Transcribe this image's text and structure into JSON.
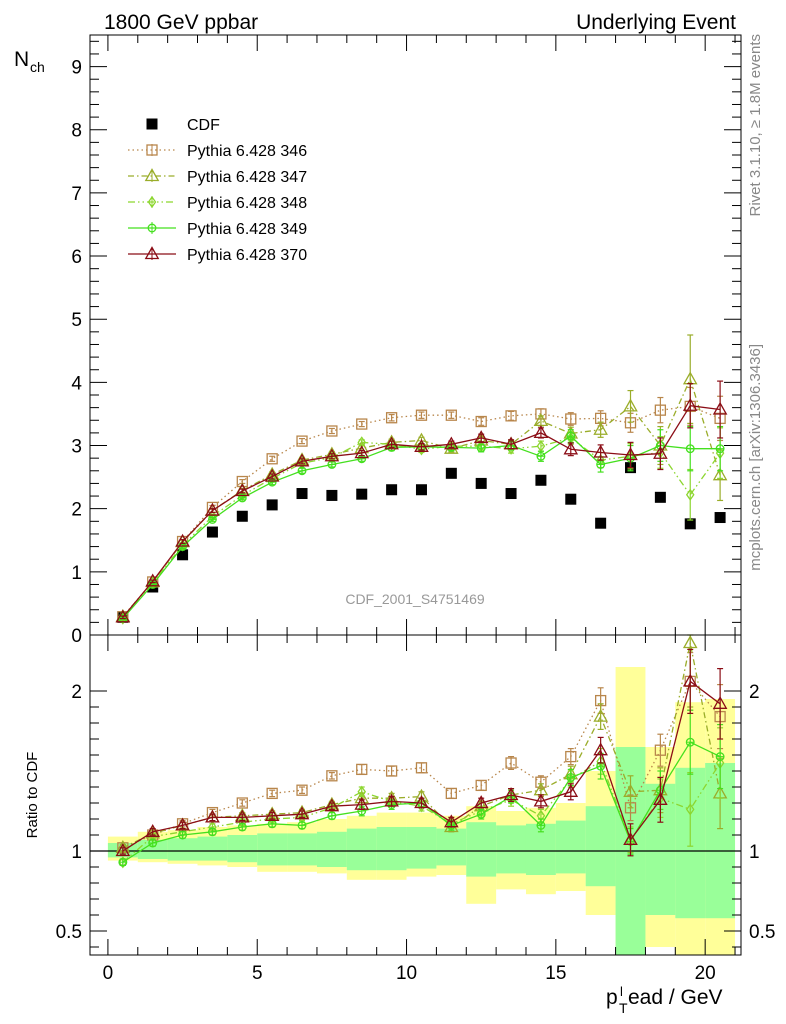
{
  "header": {
    "left": "1800 GeV ppbar",
    "right": "Underlying Event"
  },
  "side_labels": {
    "rivet": "Rivet 3.1.10, ≥ 1.8M events",
    "mcplots": "mcplots.cern.ch [arXiv:1306.3436]"
  },
  "colors": {
    "CDF": "#000000",
    "p346": "#b8864b",
    "p347": "#9aad2a",
    "p348": "#8cd62f",
    "p349": "#44e01e",
    "p370": "#8b0d16",
    "band_yellow": "#ffff99",
    "band_green": "#99ff99"
  },
  "chart_data": [
    {
      "type": "scatter",
      "title": "",
      "watermark": "CDF_2001_S4751469",
      "ylabel": "N",
      "ylabel_sub": "ch",
      "xlim": [
        -0.6,
        21.2
      ],
      "ylim": [
        0,
        9.5
      ],
      "y_ticks": [
        0,
        1,
        2,
        3,
        4,
        5,
        6,
        7,
        8,
        9
      ],
      "y_tick_labels": [
        "0",
        "1",
        "2",
        "3",
        "4",
        "5",
        "6",
        "7",
        "8",
        "9"
      ],
      "x": [
        0.5,
        1.5,
        2.5,
        3.5,
        4.5,
        5.5,
        6.5,
        7.5,
        8.5,
        9.5,
        10.5,
        11.5,
        12.5,
        13.5,
        14.5,
        15.5,
        16.5,
        17.5,
        18.5,
        19.5,
        20.5
      ],
      "legend": [
        "CDF",
        "Pythia 6.428 346",
        "Pythia 6.428 347",
        "Pythia 6.428 348",
        "Pythia 6.428 349",
        "Pythia 6.428 370"
      ],
      "series": [
        {
          "name": "CDF",
          "values": [
            0.28,
            0.76,
            1.27,
            1.63,
            1.88,
            2.06,
            2.24,
            2.21,
            2.23,
            2.3,
            2.3,
            2.56,
            2.4,
            2.24,
            2.45,
            2.15,
            1.77,
            2.65,
            2.18,
            1.76,
            1.86
          ]
        },
        {
          "name": "Pythia 6.428 346",
          "values": [
            0.29,
            0.84,
            1.48,
            2.02,
            2.43,
            2.79,
            3.07,
            3.23,
            3.34,
            3.44,
            3.48,
            3.48,
            3.38,
            3.47,
            3.5,
            3.42,
            3.43,
            3.36,
            3.56,
            3.62,
            3.43
          ],
          "err": [
            0.02,
            0.02,
            0.03,
            0.03,
            0.03,
            0.04,
            0.04,
            0.04,
            0.04,
            0.05,
            0.05,
            0.05,
            0.06,
            0.07,
            0.08,
            0.1,
            0.12,
            0.15,
            0.2,
            0.3,
            0.35
          ]
        },
        {
          "name": "Pythia 6.428 347",
          "values": [
            0.29,
            0.84,
            1.47,
            1.97,
            2.29,
            2.54,
            2.77,
            2.86,
            2.96,
            3.05,
            3.08,
            2.95,
            3.08,
            3.02,
            3.39,
            3.19,
            3.25,
            3.62,
            3.0,
            4.05,
            2.53
          ],
          "err": [
            0.02,
            0.02,
            0.03,
            0.03,
            0.03,
            0.04,
            0.04,
            0.04,
            0.04,
            0.05,
            0.05,
            0.05,
            0.06,
            0.07,
            0.08,
            0.1,
            0.12,
            0.25,
            0.3,
            0.7,
            0.4
          ]
        },
        {
          "name": "Pythia 6.428 348",
          "values": [
            0.26,
            0.83,
            1.42,
            1.88,
            2.21,
            2.48,
            2.72,
            2.81,
            3.05,
            3.02,
            2.94,
            2.99,
            2.99,
            2.95,
            2.99,
            3.12,
            2.77,
            2.83,
            2.89,
            2.22,
            2.88
          ],
          "err": [
            0.02,
            0.02,
            0.03,
            0.03,
            0.03,
            0.04,
            0.04,
            0.04,
            0.04,
            0.05,
            0.05,
            0.05,
            0.06,
            0.07,
            0.08,
            0.1,
            0.12,
            0.2,
            0.25,
            0.4,
            0.4
          ]
        },
        {
          "name": "Pythia 6.428 349",
          "values": [
            0.26,
            0.8,
            1.4,
            1.83,
            2.17,
            2.42,
            2.6,
            2.7,
            2.79,
            2.97,
            2.98,
            2.97,
            2.96,
            3.0,
            2.83,
            3.15,
            2.7,
            2.8,
            3.0,
            2.95,
            2.95
          ],
          "err": [
            0.02,
            0.02,
            0.03,
            0.03,
            0.03,
            0.04,
            0.04,
            0.04,
            0.04,
            0.05,
            0.05,
            0.05,
            0.06,
            0.07,
            0.08,
            0.1,
            0.12,
            0.2,
            0.25,
            0.35,
            0.35
          ]
        },
        {
          "name": "Pythia 6.428 370",
          "values": [
            0.28,
            0.85,
            1.48,
            1.97,
            2.28,
            2.51,
            2.75,
            2.83,
            2.88,
            3.02,
            2.98,
            3.02,
            3.12,
            3.02,
            3.2,
            2.94,
            2.89,
            2.85,
            2.87,
            3.63,
            3.57
          ],
          "err": [
            0.02,
            0.02,
            0.03,
            0.03,
            0.03,
            0.04,
            0.04,
            0.04,
            0.04,
            0.05,
            0.05,
            0.05,
            0.06,
            0.07,
            0.08,
            0.1,
            0.12,
            0.2,
            0.25,
            0.35,
            0.45
          ]
        }
      ]
    },
    {
      "type": "scatter",
      "title": "",
      "ylabel": "Ratio to CDF",
      "xlabel": "p",
      "xlabel_sub": "T",
      "xlabel_sup": "l",
      "xlabel_rest": "ead / GeV",
      "xlim": [
        -0.6,
        21.2
      ],
      "ylim": [
        0.35,
        2.35
      ],
      "y_ticks": [
        0.5,
        1,
        2
      ],
      "y_tick_labels": [
        "0.5",
        "1",
        "2"
      ],
      "x_ticks": [
        0,
        5,
        10,
        15,
        20
      ],
      "x_tick_labels": [
        "0",
        "5",
        "10",
        "15",
        "20"
      ],
      "x": [
        0.5,
        1.5,
        2.5,
        3.5,
        4.5,
        5.5,
        6.5,
        7.5,
        8.5,
        9.5,
        10.5,
        11.5,
        12.5,
        13.5,
        14.5,
        15.5,
        16.5,
        17.5,
        18.5,
        19.5,
        20.5
      ],
      "bands": {
        "yellow_lo": [
          0.94,
          0.93,
          0.92,
          0.91,
          0.9,
          0.87,
          0.87,
          0.86,
          0.82,
          0.82,
          0.84,
          0.85,
          0.67,
          0.76,
          0.73,
          0.75,
          0.6,
          0.35,
          0.4,
          0.35,
          0.35
        ],
        "yellow_hi": [
          1.09,
          1.12,
          1.13,
          1.15,
          1.16,
          1.17,
          1.18,
          1.2,
          1.22,
          1.24,
          1.24,
          1.22,
          1.28,
          1.25,
          1.27,
          1.3,
          1.5,
          2.15,
          1.65,
          1.93,
          1.95
        ],
        "green_lo": [
          0.96,
          0.95,
          0.94,
          0.94,
          0.93,
          0.91,
          0.91,
          0.9,
          0.88,
          0.88,
          0.89,
          0.91,
          0.84,
          0.86,
          0.85,
          0.86,
          0.78,
          0.35,
          0.6,
          0.58,
          0.58
        ],
        "green_hi": [
          1.05,
          1.07,
          1.08,
          1.09,
          1.1,
          1.11,
          1.11,
          1.12,
          1.14,
          1.15,
          1.15,
          1.14,
          1.18,
          1.16,
          1.17,
          1.19,
          1.28,
          1.65,
          1.42,
          1.52,
          1.55
        ]
      },
      "series": [
        {
          "name": "Pythia 6.428 346",
          "values": [
            1.02,
            1.1,
            1.17,
            1.24,
            1.3,
            1.36,
            1.38,
            1.47,
            1.51,
            1.5,
            1.52,
            1.36,
            1.41,
            1.55,
            1.43,
            1.59,
            1.94,
            1.27,
            1.63,
            2.06,
            1.84
          ],
          "err": [
            0.02,
            0.02,
            0.02,
            0.02,
            0.02,
            0.02,
            0.02,
            0.02,
            0.03,
            0.03,
            0.03,
            0.03,
            0.03,
            0.04,
            0.04,
            0.05,
            0.08,
            0.08,
            0.1,
            0.18,
            0.2
          ]
        },
        {
          "name": "Pythia 6.428 347",
          "values": [
            1.02,
            1.11,
            1.16,
            1.21,
            1.22,
            1.23,
            1.24,
            1.29,
            1.33,
            1.33,
            1.34,
            1.15,
            1.28,
            1.35,
            1.38,
            1.48,
            1.84,
            1.37,
            1.38,
            2.3,
            1.36
          ],
          "err": [
            0.02,
            0.02,
            0.02,
            0.02,
            0.02,
            0.02,
            0.02,
            0.02,
            0.03,
            0.03,
            0.03,
            0.03,
            0.03,
            0.04,
            0.04,
            0.05,
            0.08,
            0.1,
            0.14,
            0.4,
            0.22
          ]
        },
        {
          "name": "Pythia 6.428 348",
          "values": [
            0.93,
            1.09,
            1.12,
            1.15,
            1.18,
            1.2,
            1.21,
            1.27,
            1.37,
            1.31,
            1.28,
            1.17,
            1.25,
            1.32,
            1.22,
            1.45,
            1.56,
            1.07,
            1.33,
            1.26,
            1.55
          ],
          "err": [
            0.02,
            0.02,
            0.02,
            0.02,
            0.02,
            0.02,
            0.02,
            0.02,
            0.03,
            0.03,
            0.03,
            0.03,
            0.03,
            0.04,
            0.04,
            0.05,
            0.08,
            0.08,
            0.12,
            0.23,
            0.22
          ]
        },
        {
          "name": "Pythia 6.428 349",
          "values": [
            0.93,
            1.05,
            1.1,
            1.12,
            1.15,
            1.17,
            1.16,
            1.22,
            1.25,
            1.29,
            1.3,
            1.16,
            1.23,
            1.34,
            1.16,
            1.46,
            1.53,
            1.06,
            1.38,
            1.68,
            1.59
          ],
          "err": [
            0.02,
            0.02,
            0.02,
            0.02,
            0.02,
            0.02,
            0.02,
            0.02,
            0.03,
            0.03,
            0.03,
            0.03,
            0.03,
            0.04,
            0.04,
            0.05,
            0.08,
            0.08,
            0.12,
            0.2,
            0.2
          ]
        },
        {
          "name": "Pythia 6.428 370",
          "values": [
            1.0,
            1.12,
            1.16,
            1.21,
            1.21,
            1.22,
            1.23,
            1.28,
            1.29,
            1.31,
            1.3,
            1.18,
            1.3,
            1.35,
            1.31,
            1.37,
            1.63,
            1.07,
            1.32,
            2.06,
            1.92
          ],
          "err": [
            0.02,
            0.02,
            0.02,
            0.02,
            0.02,
            0.02,
            0.02,
            0.02,
            0.03,
            0.03,
            0.03,
            0.03,
            0.03,
            0.04,
            0.04,
            0.05,
            0.08,
            0.1,
            0.14,
            0.2,
            0.22
          ]
        }
      ]
    }
  ]
}
